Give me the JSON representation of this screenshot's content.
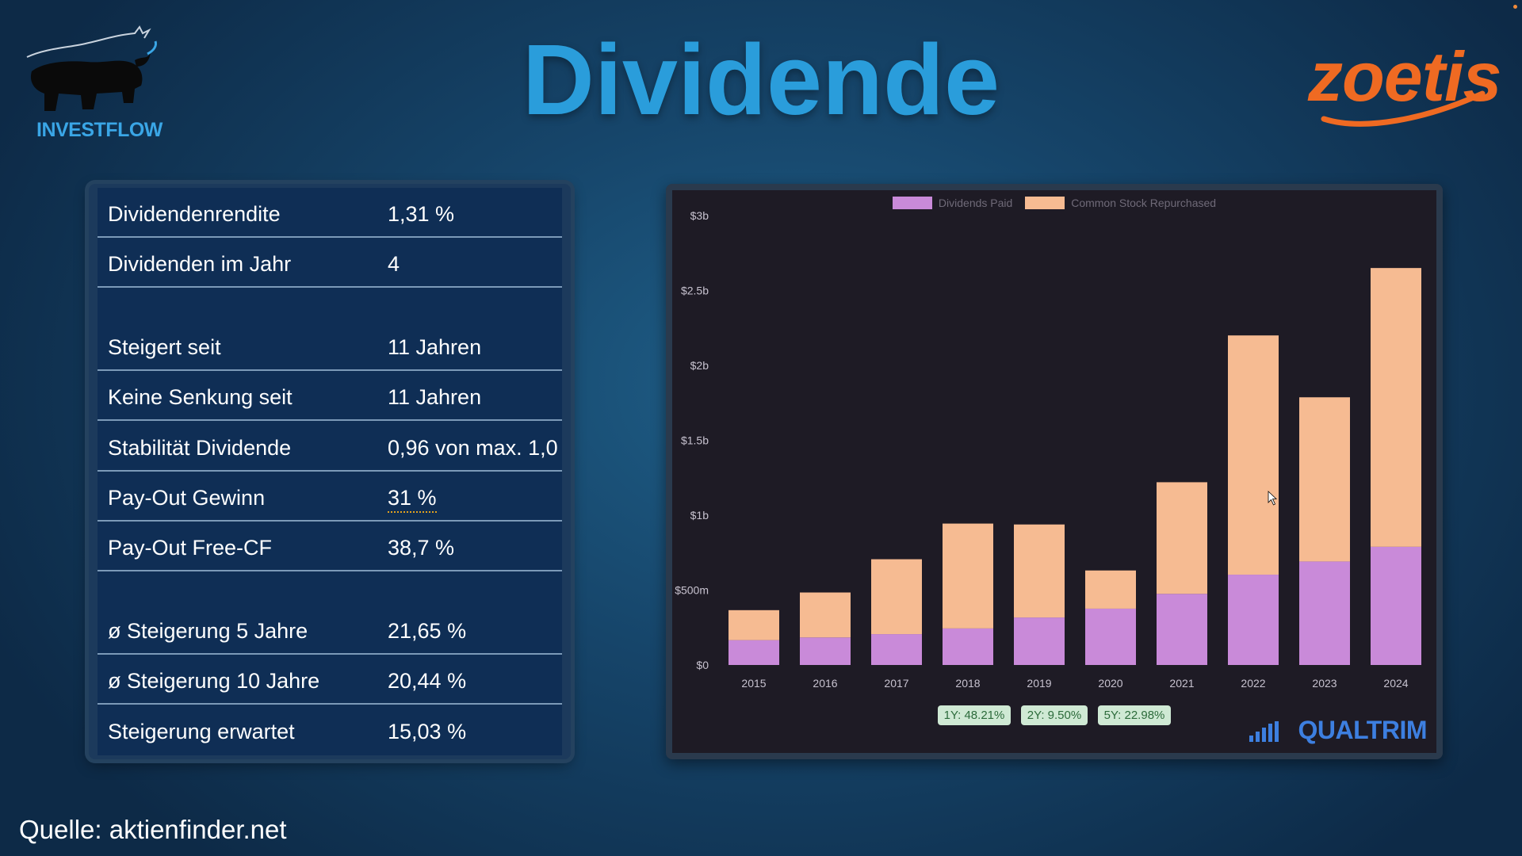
{
  "header": {
    "title": "Dividende",
    "left_logo_text": "INVESTFLOW",
    "right_brand_text": "zoetis"
  },
  "table": {
    "rows": [
      {
        "label": "Dividendenrendite",
        "value": "1,31 %"
      },
      {
        "label": "Dividenden im Jahr",
        "value": "4"
      },
      {
        "label": "Steigert seit",
        "value": "11 Jahren"
      },
      {
        "label": "Keine Senkung seit",
        "value": "11 Jahren"
      },
      {
        "label": "Stabilität Dividende",
        "value": "0,96 von max. 1,0"
      },
      {
        "label": "Pay-Out Gewinn",
        "value": "31 %"
      },
      {
        "label": "Pay-Out Free-CF",
        "value": "38,7 %"
      },
      {
        "label": "ø Steigerung 5 Jahre",
        "value": "21,65 %"
      },
      {
        "label": "ø Steigerung 10 Jahre",
        "value": "20,44 %"
      },
      {
        "label": "Steigerung erwartet",
        "value": "15,03 %"
      }
    ]
  },
  "chart_data": {
    "type": "bar",
    "stacked": true,
    "title": "",
    "xlabel": "",
    "ylabel": "",
    "categories": [
      "2015",
      "2016",
      "2017",
      "2018",
      "2019",
      "2020",
      "2021",
      "2022",
      "2023",
      "2024"
    ],
    "series": [
      {
        "name": "Dividends Paid",
        "color": "#c98ad9",
        "values": [
          0.166,
          0.184,
          0.206,
          0.244,
          0.317,
          0.376,
          0.475,
          0.603,
          0.691,
          0.789
        ]
      },
      {
        "name": "Common Stock Repurchased",
        "color": "#f6bb92",
        "values": [
          0.2,
          0.3,
          0.5,
          0.7,
          0.621,
          0.255,
          0.745,
          1.597,
          1.096,
          1.861
        ]
      }
    ],
    "ylim": [
      0,
      3
    ],
    "yticks": [
      0,
      0.5,
      1,
      1.5,
      2,
      2.5,
      3
    ],
    "ytick_labels": [
      "$0",
      "$500m",
      "$1b",
      "$1.5b",
      "$2b",
      "$2.5b",
      "$3b"
    ],
    "legend_position": "top",
    "grid": false,
    "growth_badges": [
      "1Y: 48.21%",
      "2Y: 9.50%",
      "5Y: 22.98%"
    ]
  },
  "chart_branding": "QUALTRIM",
  "source": "Quelle: aktienfinder.net"
}
